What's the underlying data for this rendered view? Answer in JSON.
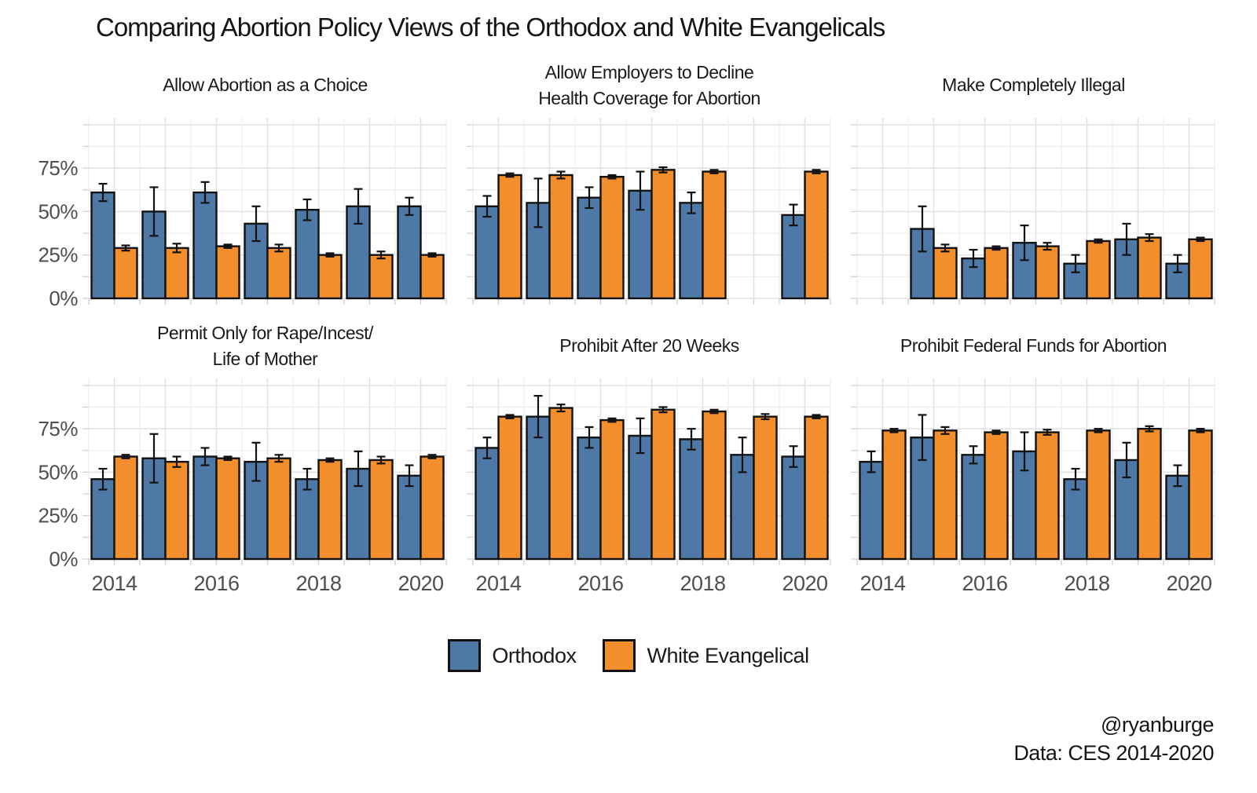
{
  "title": "Comparing Abortion Policy Views of the Orthodox and White Evangelicals",
  "credit": {
    "line1": "@ryanburge",
    "line2": "Data: CES 2014-2020"
  },
  "legend": {
    "items": [
      {
        "label": "Orthodox",
        "color": "#4E79A7"
      },
      {
        "label": "White Evangelical",
        "color": "#F28E2B"
      }
    ]
  },
  "chart_data": {
    "type": "bar",
    "subtype": "grouped-faceted-with-error-bars",
    "x": [
      "2014",
      "2015",
      "2016",
      "2017",
      "2018",
      "2019",
      "2020"
    ],
    "x_shown_ticks": [
      "2014",
      "2016",
      "2018",
      "2020"
    ],
    "y_tick_labels": [
      "0%",
      "25%",
      "50%",
      "75%"
    ],
    "y_major_gridlines": [
      0,
      25,
      50,
      75,
      100
    ],
    "y_minor_gridlines": [
      12.5,
      37.5,
      62.5,
      87.5
    ],
    "ylim": [
      0,
      104
    ],
    "grid": true,
    "legend_position": "bottom",
    "series_names": [
      "Orthodox",
      "White Evangelical"
    ],
    "series_colors": [
      "#4E79A7",
      "#F28E2B"
    ],
    "facets": [
      {
        "title": "Allow Abortion as a Choice",
        "series": [
          {
            "name": "Orthodox",
            "values": [
              61,
              50,
              61,
              43,
              51,
              53,
              53
            ],
            "errors": [
              5,
              14,
              6,
              10,
              6,
              10,
              5
            ]
          },
          {
            "name": "White Evangelical",
            "values": [
              29,
              29,
              30,
              29,
              25,
              25,
              25
            ],
            "errors": [
              1.5,
              2.5,
              1,
              2,
              1,
              2,
              1
            ]
          }
        ]
      },
      {
        "title": "Allow Employers to Decline\nHealth Coverage for Abortion",
        "series": [
          {
            "name": "Orthodox",
            "values": [
              53,
              55,
              58,
              62,
              55,
              null,
              48
            ],
            "errors": [
              6,
              14,
              6,
              11,
              6,
              null,
              6
            ]
          },
          {
            "name": "White Evangelical",
            "values": [
              71,
              71,
              70,
              74,
              73,
              null,
              73
            ],
            "errors": [
              1,
              2,
              1,
              1.5,
              1,
              null,
              1
            ]
          }
        ]
      },
      {
        "title": "Make Completely Illegal",
        "series": [
          {
            "name": "Orthodox",
            "values": [
              null,
              40,
              23,
              32,
              20,
              34,
              20
            ],
            "errors": [
              null,
              13,
              5,
              10,
              5,
              9,
              5
            ]
          },
          {
            "name": "White Evangelical",
            "values": [
              null,
              29,
              29,
              30,
              33,
              35,
              34
            ],
            "errors": [
              null,
              2,
              1,
              2,
              1,
              2,
              1
            ]
          }
        ]
      },
      {
        "title": "Permit Only for Rape/Incest/\nLife of Mother",
        "series": [
          {
            "name": "Orthodox",
            "values": [
              46,
              58,
              59,
              56,
              46,
              52,
              48
            ],
            "errors": [
              6,
              14,
              5,
              11,
              6,
              10,
              6
            ]
          },
          {
            "name": "White Evangelical",
            "values": [
              59,
              56,
              58,
              58,
              57,
              57,
              59
            ],
            "errors": [
              1,
              3,
              1,
              2,
              1,
              2,
              1
            ]
          }
        ]
      },
      {
        "title": "Prohibit After 20 Weeks",
        "series": [
          {
            "name": "Orthodox",
            "values": [
              64,
              82,
              70,
              71,
              69,
              60,
              59
            ],
            "errors": [
              6,
              12,
              6,
              10,
              6,
              10,
              6
            ]
          },
          {
            "name": "White Evangelical",
            "values": [
              82,
              87,
              80,
              86,
              85,
              82,
              82
            ],
            "errors": [
              1,
              2,
              1,
              1.5,
              1,
              1.5,
              1
            ]
          }
        ]
      },
      {
        "title": "Prohibit Federal Funds for Abortion",
        "series": [
          {
            "name": "Orthodox",
            "values": [
              56,
              70,
              60,
              62,
              46,
              57,
              48
            ],
            "errors": [
              6,
              13,
              5,
              11,
              6,
              10,
              6
            ]
          },
          {
            "name": "White Evangelical",
            "values": [
              74,
              74,
              73,
              73,
              74,
              75,
              74
            ],
            "errors": [
              1,
              2,
              1,
              1.5,
              1,
              1.5,
              1
            ]
          }
        ]
      }
    ]
  }
}
